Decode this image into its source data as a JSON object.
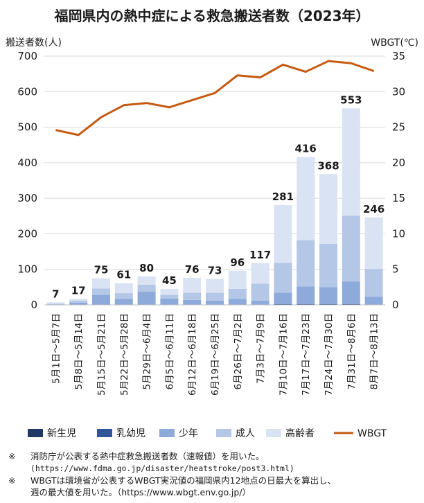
{
  "chart_data": {
    "type": "bar",
    "title": "福岡県内の熱中症による救急搬送者数（2023年）",
    "y_left_label": "搬送者数(人)",
    "y_right_label": "WBGT(℃)",
    "y_left_ticks": [
      "0",
      "100",
      "200",
      "300",
      "400",
      "500",
      "600",
      "700"
    ],
    "y_right_ticks": [
      "0",
      "5",
      "10",
      "15",
      "20",
      "25",
      "30",
      "35"
    ],
    "ylim_left": [
      0,
      700
    ],
    "ylim_right": [
      0,
      35
    ],
    "categories": [
      "5月1日～5月7日",
      "5月8日～5月14日",
      "5月15日～5月21日",
      "5月22日～5月28日",
      "5月29日～6月4日",
      "6月5日～6月11日",
      "6月12日～6月18日",
      "6月19日～6月25日",
      "6月26日～7月2日",
      "7月3日～7月9日",
      "7月10日～7月16日",
      "7月17日～7月23日",
      "7月24日～7月30日",
      "7月31日～8月6日",
      "8月7日～8月13日"
    ],
    "series": [
      {
        "name": "新生児",
        "values": [
          0,
          0,
          0,
          0,
          0,
          0,
          0,
          0,
          0,
          0,
          0,
          0,
          0,
          0,
          0
        ]
      },
      {
        "name": "乳幼児",
        "values": [
          0,
          0,
          0,
          0,
          0,
          0,
          0,
          0,
          0,
          0,
          2,
          2,
          2,
          2,
          1
        ]
      },
      {
        "name": "少年",
        "values": [
          1,
          6,
          28,
          17,
          37,
          18,
          14,
          12,
          17,
          12,
          32,
          50,
          48,
          64,
          22
        ]
      },
      {
        "name": "成人",
        "values": [
          2,
          6,
          18,
          16,
          20,
          10,
          20,
          22,
          28,
          48,
          84,
          130,
          122,
          185,
          78
        ]
      },
      {
        "name": "高齢者",
        "values": [
          4,
          5,
          29,
          28,
          23,
          17,
          42,
          39,
          51,
          57,
          163,
          234,
          196,
          302,
          145
        ]
      }
    ],
    "totals": [
      "7",
      "17",
      "75",
      "61",
      "80",
      "45",
      "76",
      "73",
      "96",
      "117",
      "281",
      "416",
      "368",
      "553",
      "246"
    ],
    "line_series": {
      "name": "WBGT",
      "axis": "right",
      "values": [
        24.6,
        23.9,
        26.4,
        28.1,
        28.4,
        27.8,
        28.8,
        29.8,
        32.3,
        32.0,
        33.8,
        32.8,
        34.3,
        34.0,
        32.9
      ]
    },
    "grid": true,
    "legend_position": "bottom"
  },
  "colors": {
    "新生児": "#1f3864",
    "乳幼児": "#2f5597",
    "少年": "#8eaadb",
    "成人": "#b4c7e7",
    "高齢者": "#dae3f3",
    "WBGT": "#c55a11"
  },
  "notes": [
    {
      "mark": "※",
      "line1": "消防庁が公表する熱中症救急搬送者数（速報値）を用いた。",
      "line2": "(https://www.fdma.go.jp/disaster/heatstroke/post3.html)"
    },
    {
      "mark": "※",
      "line1": "WBGTは環境省が公表するWBGT実況値の福岡県内12地点の日最大を算出し、",
      "line2": "週の最大値を用いた。（https://www.wbgt.env.go.jp/）"
    }
  ]
}
